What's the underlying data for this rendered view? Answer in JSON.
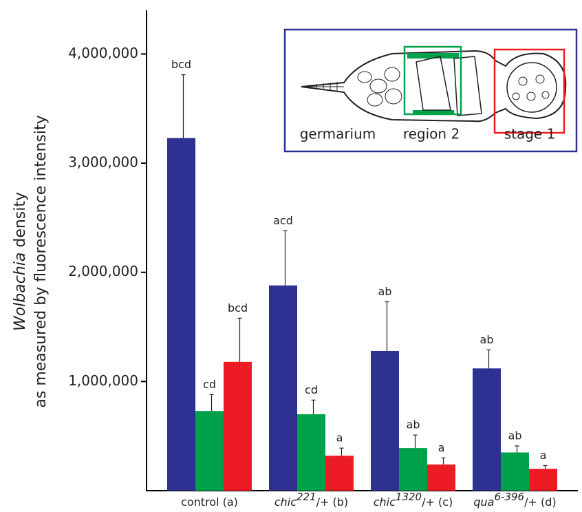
{
  "chart_data": {
    "type": "bar",
    "ylabel": {
      "italic": "Wolbachia",
      "rest": " density",
      "line2": "as measured by fluorescence intensity"
    },
    "categories": [
      {
        "italic": "control (a)",
        "sup": "",
        "rest": ""
      },
      {
        "italic": "chic",
        "sup": "221",
        "rest": "/+ (b)"
      },
      {
        "italic": "chic",
        "sup": "1320",
        "rest": "/+ (c)"
      },
      {
        "italic": "qua",
        "sup": "6-396",
        "rest": "/+ (d)"
      }
    ],
    "series": [
      {
        "name": "germarium",
        "color": "#2e3192",
        "values": [
          3230000,
          1880000,
          1280000,
          1120000
        ],
        "errors": [
          580000,
          500000,
          450000,
          170000
        ],
        "letters": [
          "bcd",
          "acd",
          "ab",
          "ab"
        ]
      },
      {
        "name": "region 2",
        "color": "#00a14b",
        "values": [
          730000,
          700000,
          390000,
          350000
        ],
        "errors": [
          150000,
          130000,
          120000,
          60000
        ],
        "letters": [
          "cd",
          "cd",
          "ab",
          "ab"
        ]
      },
      {
        "name": "stage 1",
        "color": "#ed1c24",
        "values": [
          1180000,
          320000,
          240000,
          200000
        ],
        "errors": [
          400000,
          70000,
          60000,
          30000
        ],
        "letters": [
          "bcd",
          "a",
          "a",
          "a"
        ]
      }
    ],
    "ylim": [
      0,
      4400000
    ],
    "yticks": [
      {
        "value": 1000000,
        "label": "1,000,000"
      },
      {
        "value": 2000000,
        "label": "2,000,000"
      },
      {
        "value": 3000000,
        "label": "3,000,000"
      },
      {
        "value": 4000000,
        "label": "4,000,000"
      }
    ],
    "grid": false
  }
}
